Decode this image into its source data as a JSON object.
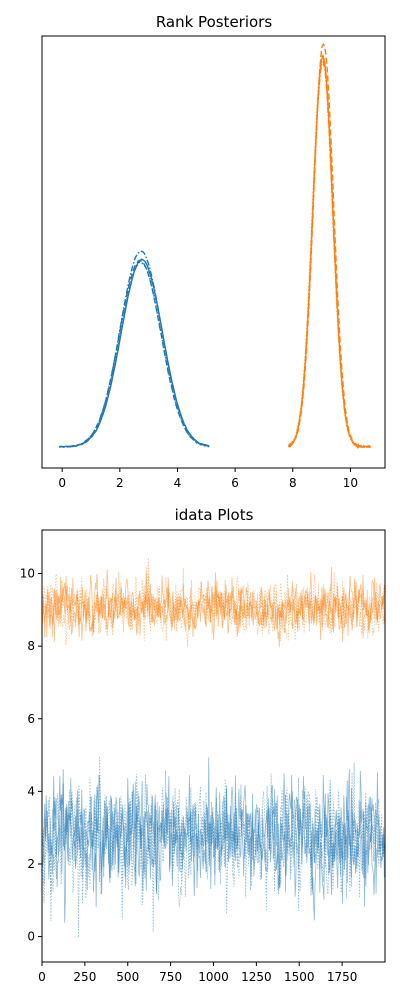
{
  "chart_data": [
    {
      "type": "line",
      "title": "Rank Posteriors",
      "xlabel": "",
      "ylabel": "",
      "xlim": [
        -0.7,
        11.2
      ],
      "xticks": [
        0,
        2,
        4,
        6,
        8,
        10
      ],
      "yticks_shown": false,
      "grid": false,
      "colors": [
        "#1f77b4",
        "#ff7f0e"
      ],
      "series": [
        {
          "chains": 4,
          "line_styles": [
            "solid",
            "dashed",
            "dotted",
            "dashdot"
          ],
          "mean": 2.75,
          "sd": 0.72,
          "x_range": [
            -0.1,
            5.1
          ],
          "peak_density": 0.56
        },
        {
          "chains": 4,
          "line_styles": [
            "solid",
            "dashed",
            "dotted",
            "dashdot"
          ],
          "mean": 9.05,
          "sd": 0.35,
          "x_range": [
            7.85,
            10.7
          ],
          "peak_density": 1.15
        }
      ]
    },
    {
      "type": "line",
      "title": "idata Plots",
      "xlabel": "",
      "ylabel": "",
      "xlim": [
        0,
        2000
      ],
      "ylim": [
        -0.7,
        11.2
      ],
      "xticks": [
        0,
        250,
        500,
        750,
        1000,
        1250,
        1500,
        1750
      ],
      "yticks": [
        0,
        2,
        4,
        6,
        8,
        10
      ],
      "grid": false,
      "colors": [
        "#1f77b4",
        "#ff7f0e"
      ],
      "draws": 2000,
      "series": [
        {
          "chains": 4,
          "mean": 2.75,
          "sd": 0.72,
          "min": -0.15,
          "max": 5.1
        },
        {
          "chains": 4,
          "mean": 9.05,
          "sd": 0.35,
          "min": 7.9,
          "max": 10.5
        }
      ]
    }
  ]
}
